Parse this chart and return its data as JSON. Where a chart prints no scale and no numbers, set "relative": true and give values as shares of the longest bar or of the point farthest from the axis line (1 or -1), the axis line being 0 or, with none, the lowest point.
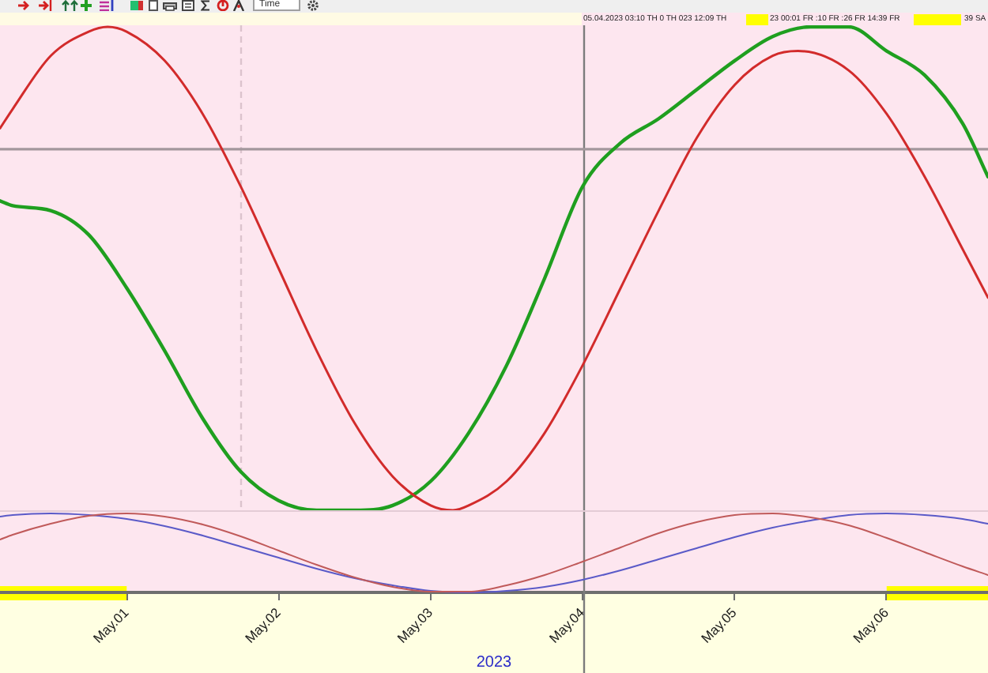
{
  "chart_data": [
    {
      "type": "line",
      "relative": true,
      "tick_labels": false,
      "marker": "none",
      "x": [
        "2023-04-30T04:00",
        "2023-04-30T06:00",
        "2023-04-30T12:00",
        "2023-04-30T18:00",
        "2023-05-01T00:00",
        "2023-05-01T06:00",
        "2023-05-01T12:00",
        "2023-05-01T18:00",
        "2023-05-02T00:00",
        "2023-05-02T06:00",
        "2023-05-02T12:00",
        "2023-05-02T18:00",
        "2023-05-03T00:00",
        "2023-05-03T06:00",
        "2023-05-03T12:00",
        "2023-05-03T18:00",
        "2023-05-04T00:00",
        "2023-05-04T06:00",
        "2023-05-04T12:00",
        "2023-05-04T18:00",
        "2023-05-05T00:00",
        "2023-05-05T06:00",
        "2023-05-05T12:00",
        "2023-05-05T18:00",
        "2023-05-06T00:00",
        "2023-05-06T06:00",
        "2023-05-06T12:00",
        "2023-05-06T16:00"
      ],
      "xlim": [
        "2023-04-30T04:00",
        "2023-05-06T16:00"
      ],
      "annotations": [
        "Time",
        "05.04.2023 03:10 TH 0 TH 023 12:09 TH",
        "23 00:01 FR :10 FR :26 FR 14:39 FR",
        "39 SA"
      ],
      "ref_lines": [
        {
          "axis": "x",
          "value": "2023-05-01T18:00",
          "line_style": "dashed",
          "color": "#dcc3cd"
        },
        {
          "axis": "x",
          "value": "2023-05-04",
          "color": "#7c7c7c"
        },
        {
          "axis": "y",
          "value": 0.747,
          "color": "#a3979c"
        }
      ],
      "series": [
        {
          "color": "#d22b2b",
          "x": [
            "2023-04-30T04:00",
            "2023-04-30T06:00",
            "2023-04-30T12:00",
            "2023-04-30T18:00",
            "2023-04-30T21:00",
            "2023-05-01T00:00",
            "2023-05-01T06:00",
            "2023-05-01T12:00",
            "2023-05-01T18:00",
            "2023-05-02T00:00",
            "2023-05-02T06:00",
            "2023-05-02T12:00",
            "2023-05-02T18:00",
            "2023-05-03T00:00",
            "2023-05-03T03:30",
            "2023-05-03T06:00",
            "2023-05-03T12:00",
            "2023-05-03T18:00",
            "2023-05-04T00:00",
            "2023-05-04T06:00",
            "2023-05-04T12:00",
            "2023-05-04T18:00",
            "2023-05-05T00:00",
            "2023-05-05T06:00",
            "2023-05-05T10:00",
            "2023-05-05T18:00",
            "2023-05-06T00:00",
            "2023-05-06T06:00",
            "2023-05-06T12:00",
            "2023-05-06T16:00"
          ],
          "values": [
            0.79,
            0.83,
            0.94,
            0.99,
            1.0,
            0.99,
            0.93,
            0.82,
            0.67,
            0.5,
            0.33,
            0.18,
            0.07,
            0.01,
            0.0,
            0.01,
            0.06,
            0.16,
            0.3,
            0.46,
            0.62,
            0.77,
            0.88,
            0.94,
            0.95,
            0.91,
            0.82,
            0.69,
            0.54,
            0.44
          ]
        },
        {
          "color": "#1f9f1f",
          "values": [
            0.64,
            0.63,
            0.62,
            0.57,
            0.46,
            0.33,
            0.19,
            0.08,
            0.02,
            0.0,
            0.0,
            0.01,
            0.06,
            0.16,
            0.3,
            0.48,
            0.67,
            0.76,
            0.81,
            0.87,
            0.93,
            0.98,
            1.0,
            1.0,
            0.95,
            0.9,
            0.8,
            0.69
          ]
        }
      ]
    },
    {
      "type": "line",
      "relative": true,
      "marker": "none",
      "xlabel": "2023",
      "x": [
        "2023-04-30T04:00",
        "2023-04-30T06:00",
        "2023-04-30T12:00",
        "2023-04-30T18:00",
        "2023-05-01T00:00",
        "2023-05-01T06:00",
        "2023-05-01T12:00",
        "2023-05-01T18:00",
        "2023-05-02T00:00",
        "2023-05-02T06:00",
        "2023-05-02T12:00",
        "2023-05-02T18:00",
        "2023-05-03T00:00",
        "2023-05-03T06:00",
        "2023-05-03T12:00",
        "2023-05-03T18:00",
        "2023-05-04T00:00",
        "2023-05-04T06:00",
        "2023-05-04T12:00",
        "2023-05-04T18:00",
        "2023-05-05T00:00",
        "2023-05-05T06:00",
        "2023-05-05T12:00",
        "2023-05-05T18:00",
        "2023-05-06T00:00",
        "2023-05-06T06:00",
        "2023-05-06T12:00",
        "2023-05-06T16:00"
      ],
      "xlim": [
        "2023-04-30T04:00",
        "2023-05-06T16:00"
      ],
      "xticks": [
        {
          "value": "2023-05-01",
          "label": "May.01"
        },
        {
          "value": "2023-05-02",
          "label": "May.02"
        },
        {
          "value": "2023-05-03",
          "label": "May.03"
        },
        {
          "value": "2023-05-04",
          "label": "May.04"
        },
        {
          "value": "2023-05-05",
          "label": "May.05"
        },
        {
          "value": "2023-05-06",
          "label": "May.06"
        }
      ],
      "bands": [
        {
          "axis": "x",
          "from": "2023-04-30T04:00",
          "to": "2023-05-01",
          "color": "#ffff00"
        },
        {
          "axis": "x",
          "from": "2023-05-06",
          "to": "2023-05-06T16:00",
          "color": "#ffff00"
        }
      ],
      "ref_lines": [
        {
          "axis": "x",
          "value": "2023-05-04",
          "color": "#7c7c7c"
        }
      ],
      "series": [
        {
          "color": "#c05a5a",
          "values": [
            0.67,
            0.73,
            0.87,
            0.97,
            1.0,
            0.96,
            0.86,
            0.71,
            0.53,
            0.35,
            0.19,
            0.07,
            0.01,
            0.01,
            0.09,
            0.22,
            0.39,
            0.57,
            0.75,
            0.89,
            0.98,
            1.0,
            0.95,
            0.85,
            0.69,
            0.51,
            0.33,
            0.22
          ]
        },
        {
          "color": "#5a5ac8",
          "values": [
            0.96,
            0.98,
            1.0,
            0.98,
            0.93,
            0.84,
            0.72,
            0.58,
            0.44,
            0.3,
            0.18,
            0.09,
            0.02,
            0.0,
            0.02,
            0.07,
            0.16,
            0.28,
            0.42,
            0.56,
            0.7,
            0.82,
            0.91,
            0.98,
            1.0,
            0.98,
            0.93,
            0.87
          ]
        }
      ]
    }
  ]
}
